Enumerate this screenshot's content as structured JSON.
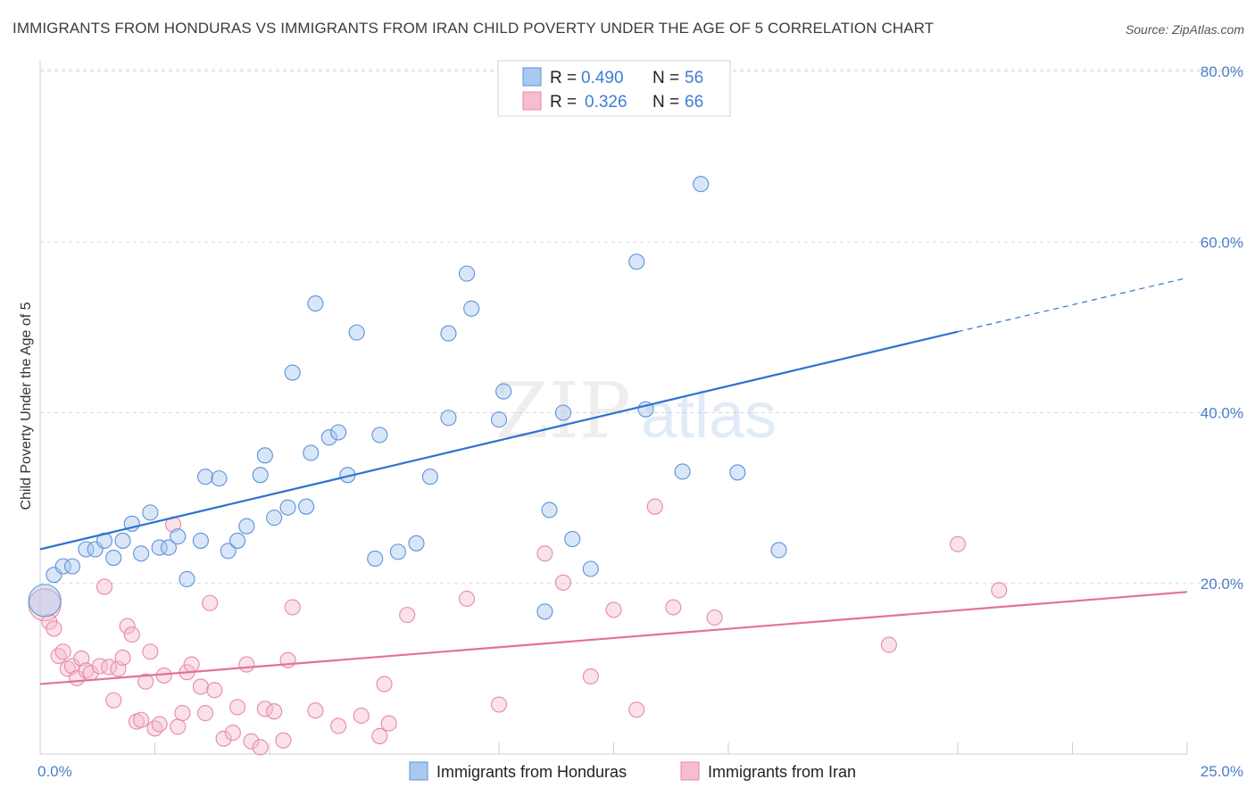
{
  "title": "IMMIGRANTS FROM HONDURAS VS IMMIGRANTS FROM IRAN CHILD POVERTY UNDER THE AGE OF 5 CORRELATION CHART",
  "source": "Source: ZipAtlas.com",
  "colors": {
    "honduras_fill": "#aac8f0",
    "honduras_stroke": "#5b93d9",
    "honduras_line": "#2f74d0",
    "iran_fill": "#f7bccd",
    "iran_stroke": "#e58aa8",
    "iran_line": "#e4719b",
    "grid": "#d8d8d8",
    "tick_text": "#4a7fc9"
  },
  "legend": {
    "rows": [
      {
        "r_label": "R =",
        "r_value": "0.490",
        "n_label": "N =",
        "n_value": "56"
      },
      {
        "r_label": "R =",
        "r_value": "0.326",
        "n_label": "N =",
        "n_value": "66"
      }
    ]
  },
  "watermark": {
    "part1": "ZIP",
    "part2": "atlas"
  },
  "chart_data": {
    "type": "scatter",
    "title": "IMMIGRANTS FROM HONDURAS VS IMMIGRANTS FROM IRAN CHILD POVERTY UNDER THE AGE OF 5 CORRELATION CHART",
    "xlabel": "",
    "ylabel": "Child Poverty Under the Age of 5",
    "xlim": [
      0,
      25
    ],
    "ylim": [
      0,
      80
    ],
    "x_tick_labels": [
      {
        "value": 0,
        "label": "0.0%"
      },
      {
        "value": 25,
        "label": "25.0%"
      }
    ],
    "y_tick_labels": [
      {
        "value": 20,
        "label": "20.0%"
      },
      {
        "value": 40,
        "label": "40.0%"
      },
      {
        "value": 60,
        "label": "60.0%"
      },
      {
        "value": 80,
        "label": "80.0%"
      }
    ],
    "series": [
      {
        "name": "Immigrants from Honduras",
        "R": 0.49,
        "N": 56,
        "trend": {
          "x0": 0,
          "y0": 24.0,
          "x1": 20.0,
          "y1": 49.5,
          "dash_x1": 25.0,
          "dash_y1": 55.8
        },
        "points": [
          {
            "x": 0.1,
            "y": 18.0,
            "size": "large"
          },
          {
            "x": 0.3,
            "y": 21.0
          },
          {
            "x": 0.5,
            "y": 22.0
          },
          {
            "x": 0.7,
            "y": 22.0
          },
          {
            "x": 1.0,
            "y": 24.0
          },
          {
            "x": 1.2,
            "y": 24.0
          },
          {
            "x": 1.4,
            "y": 25.0
          },
          {
            "x": 1.6,
            "y": 23.0
          },
          {
            "x": 1.8,
            "y": 25.0
          },
          {
            "x": 2.0,
            "y": 27.0
          },
          {
            "x": 2.2,
            "y": 23.5
          },
          {
            "x": 2.4,
            "y": 28.3
          },
          {
            "x": 2.6,
            "y": 24.2
          },
          {
            "x": 2.8,
            "y": 24.2
          },
          {
            "x": 3.0,
            "y": 25.5
          },
          {
            "x": 3.2,
            "y": 20.5
          },
          {
            "x": 3.5,
            "y": 25.0
          },
          {
            "x": 3.6,
            "y": 32.5
          },
          {
            "x": 3.9,
            "y": 32.3
          },
          {
            "x": 4.1,
            "y": 23.8
          },
          {
            "x": 4.3,
            "y": 25.0
          },
          {
            "x": 4.5,
            "y": 26.7
          },
          {
            "x": 4.8,
            "y": 32.7
          },
          {
            "x": 4.9,
            "y": 35.0
          },
          {
            "x": 5.1,
            "y": 27.7
          },
          {
            "x": 5.4,
            "y": 28.9
          },
          {
            "x": 5.5,
            "y": 44.7
          },
          {
            "x": 5.8,
            "y": 29.0
          },
          {
            "x": 5.9,
            "y": 35.3
          },
          {
            "x": 6.0,
            "y": 52.8
          },
          {
            "x": 6.3,
            "y": 37.1
          },
          {
            "x": 6.5,
            "y": 37.7
          },
          {
            "x": 6.7,
            "y": 32.7
          },
          {
            "x": 6.9,
            "y": 49.4
          },
          {
            "x": 7.3,
            "y": 22.9
          },
          {
            "x": 7.4,
            "y": 37.4
          },
          {
            "x": 7.8,
            "y": 23.7
          },
          {
            "x": 8.2,
            "y": 24.7
          },
          {
            "x": 8.5,
            "y": 32.5
          },
          {
            "x": 8.9,
            "y": 49.3
          },
          {
            "x": 8.9,
            "y": 39.4
          },
          {
            "x": 9.3,
            "y": 56.3
          },
          {
            "x": 9.4,
            "y": 52.2
          },
          {
            "x": 10.0,
            "y": 39.2
          },
          {
            "x": 10.1,
            "y": 42.5
          },
          {
            "x": 11.0,
            "y": 16.7
          },
          {
            "x": 11.1,
            "y": 28.6
          },
          {
            "x": 11.4,
            "y": 40.0
          },
          {
            "x": 11.6,
            "y": 25.2
          },
          {
            "x": 12.0,
            "y": 21.7
          },
          {
            "x": 13.0,
            "y": 57.7
          },
          {
            "x": 13.2,
            "y": 40.4
          },
          {
            "x": 14.0,
            "y": 33.1
          },
          {
            "x": 14.4,
            "y": 66.8
          },
          {
            "x": 15.2,
            "y": 33.0
          },
          {
            "x": 16.1,
            "y": 23.9
          }
        ]
      },
      {
        "name": "Immigrants from Iran",
        "R": 0.326,
        "N": 66,
        "trend": {
          "x0": 0,
          "y0": 8.2,
          "x1": 25.0,
          "y1": 19.0
        },
        "points": [
          {
            "x": 0.1,
            "y": 17.5,
            "size": "large"
          },
          {
            "x": 0.2,
            "y": 15.5
          },
          {
            "x": 0.3,
            "y": 14.7
          },
          {
            "x": 0.4,
            "y": 11.5
          },
          {
            "x": 0.5,
            "y": 12.0
          },
          {
            "x": 0.6,
            "y": 10.0
          },
          {
            "x": 0.7,
            "y": 10.3
          },
          {
            "x": 0.8,
            "y": 8.9
          },
          {
            "x": 0.9,
            "y": 11.2
          },
          {
            "x": 1.0,
            "y": 9.8
          },
          {
            "x": 1.1,
            "y": 9.5
          },
          {
            "x": 1.3,
            "y": 10.3
          },
          {
            "x": 1.4,
            "y": 19.6
          },
          {
            "x": 1.5,
            "y": 10.2
          },
          {
            "x": 1.6,
            "y": 6.3
          },
          {
            "x": 1.7,
            "y": 10.0
          },
          {
            "x": 1.8,
            "y": 11.3
          },
          {
            "x": 1.9,
            "y": 15.0
          },
          {
            "x": 2.0,
            "y": 14.0
          },
          {
            "x": 2.1,
            "y": 3.8
          },
          {
            "x": 2.2,
            "y": 4.0
          },
          {
            "x": 2.3,
            "y": 8.5
          },
          {
            "x": 2.4,
            "y": 12.0
          },
          {
            "x": 2.5,
            "y": 3.0
          },
          {
            "x": 2.6,
            "y": 3.5
          },
          {
            "x": 2.7,
            "y": 9.2
          },
          {
            "x": 2.9,
            "y": 26.9
          },
          {
            "x": 3.0,
            "y": 3.2
          },
          {
            "x": 3.1,
            "y": 4.8
          },
          {
            "x": 3.2,
            "y": 9.6
          },
          {
            "x": 3.3,
            "y": 10.5
          },
          {
            "x": 3.5,
            "y": 7.9
          },
          {
            "x": 3.6,
            "y": 4.8
          },
          {
            "x": 3.7,
            "y": 17.7
          },
          {
            "x": 3.8,
            "y": 7.5
          },
          {
            "x": 4.0,
            "y": 1.8
          },
          {
            "x": 4.2,
            "y": 2.5
          },
          {
            "x": 4.3,
            "y": 5.5
          },
          {
            "x": 4.5,
            "y": 10.5
          },
          {
            "x": 4.6,
            "y": 1.5
          },
          {
            "x": 4.8,
            "y": 0.8
          },
          {
            "x": 4.9,
            "y": 5.3
          },
          {
            "x": 5.1,
            "y": 5.0
          },
          {
            "x": 5.3,
            "y": 1.6
          },
          {
            "x": 5.4,
            "y": 11.0
          },
          {
            "x": 5.5,
            "y": 17.2
          },
          {
            "x": 6.0,
            "y": 5.1
          },
          {
            "x": 6.5,
            "y": 3.3
          },
          {
            "x": 7.0,
            "y": 4.5
          },
          {
            "x": 7.4,
            "y": 2.1
          },
          {
            "x": 7.5,
            "y": 8.2
          },
          {
            "x": 7.6,
            "y": 3.6
          },
          {
            "x": 8.0,
            "y": 16.3
          },
          {
            "x": 9.3,
            "y": 18.2
          },
          {
            "x": 10.0,
            "y": 5.8
          },
          {
            "x": 11.0,
            "y": 23.5
          },
          {
            "x": 11.4,
            "y": 20.1
          },
          {
            "x": 12.0,
            "y": 9.1
          },
          {
            "x": 12.5,
            "y": 16.9
          },
          {
            "x": 13.0,
            "y": 5.2
          },
          {
            "x": 13.4,
            "y": 29.0
          },
          {
            "x": 13.8,
            "y": 17.2
          },
          {
            "x": 14.7,
            "y": 16.0
          },
          {
            "x": 18.5,
            "y": 12.8
          },
          {
            "x": 20.0,
            "y": 24.6
          },
          {
            "x": 20.9,
            "y": 19.2
          }
        ]
      }
    ]
  }
}
